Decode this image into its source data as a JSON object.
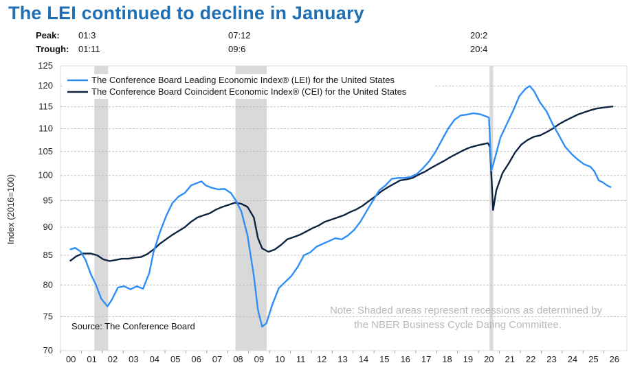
{
  "title": "The LEI continued to decline in January",
  "peak_label": "Peak:",
  "trough_label": "Trough:",
  "peaks": [
    "01:3",
    "07:12",
    "20:2"
  ],
  "troughs": [
    "01:11",
    "09:6",
    "20:4"
  ],
  "chart_data": {
    "type": "line",
    "ylabel": "Index (2016=100)",
    "xlabel": "",
    "ylim": [
      70,
      125
    ],
    "yticks": [
      70,
      75,
      80,
      85,
      90,
      95,
      100,
      105,
      110,
      115,
      120,
      125
    ],
    "x_tick_labels": [
      "00",
      "01",
      "02",
      "03",
      "04",
      "05",
      "06",
      "07",
      "08",
      "09",
      "10",
      "11",
      "12",
      "13",
      "14",
      "15",
      "16",
      "17",
      "18",
      "19",
      "20",
      "21",
      "22",
      "23",
      "24",
      "25",
      "26"
    ],
    "recessions": [
      {
        "start": 2001.17,
        "end": 2001.83
      },
      {
        "start": 2007.92,
        "end": 2009.42
      },
      {
        "start": 2020.08,
        "end": 2020.25
      }
    ],
    "series": [
      {
        "name": "The Conference Board Leading Economic Index® (LEI) for the United States",
        "color": "#2f8ef5",
        "points": [
          [
            2000.0,
            86.0
          ],
          [
            2000.25,
            86.3
          ],
          [
            2000.5,
            85.7
          ],
          [
            2000.75,
            84.2
          ],
          [
            2001.0,
            81.8
          ],
          [
            2001.25,
            80.0
          ],
          [
            2001.5,
            77.8
          ],
          [
            2001.8,
            76.6
          ],
          [
            2002.0,
            77.6
          ],
          [
            2002.3,
            79.6
          ],
          [
            2002.6,
            79.8
          ],
          [
            2002.9,
            79.3
          ],
          [
            2003.2,
            79.8
          ],
          [
            2003.5,
            79.4
          ],
          [
            2003.8,
            82.0
          ],
          [
            2004.0,
            85.5
          ],
          [
            2004.3,
            89.0
          ],
          [
            2004.6,
            92.0
          ],
          [
            2004.9,
            94.5
          ],
          [
            2005.2,
            95.8
          ],
          [
            2005.5,
            96.5
          ],
          [
            2005.8,
            98.0
          ],
          [
            2006.1,
            98.5
          ],
          [
            2006.3,
            98.8
          ],
          [
            2006.5,
            98.0
          ],
          [
            2006.8,
            97.5
          ],
          [
            2007.1,
            97.2
          ],
          [
            2007.4,
            97.3
          ],
          [
            2007.7,
            96.5
          ],
          [
            2007.9,
            95.3
          ],
          [
            2008.2,
            93.0
          ],
          [
            2008.5,
            88.5
          ],
          [
            2008.8,
            81.5
          ],
          [
            2009.0,
            76.0
          ],
          [
            2009.2,
            73.5
          ],
          [
            2009.4,
            74.0
          ],
          [
            2009.7,
            77.0
          ],
          [
            2010.0,
            79.5
          ],
          [
            2010.3,
            80.5
          ],
          [
            2010.6,
            81.5
          ],
          [
            2010.9,
            83.0
          ],
          [
            2011.2,
            85.0
          ],
          [
            2011.5,
            85.5
          ],
          [
            2011.8,
            86.5
          ],
          [
            2012.1,
            87.0
          ],
          [
            2012.4,
            87.5
          ],
          [
            2012.7,
            88.0
          ],
          [
            2013.0,
            87.8
          ],
          [
            2013.3,
            88.5
          ],
          [
            2013.6,
            89.5
          ],
          [
            2013.9,
            91.0
          ],
          [
            2014.2,
            93.0
          ],
          [
            2014.5,
            95.0
          ],
          [
            2014.8,
            97.0
          ],
          [
            2015.1,
            98.0
          ],
          [
            2015.4,
            99.3
          ],
          [
            2015.7,
            99.5
          ],
          [
            2016.0,
            99.5
          ],
          [
            2016.3,
            99.7
          ],
          [
            2016.6,
            100.3
          ],
          [
            2016.9,
            101.5
          ],
          [
            2017.2,
            103.0
          ],
          [
            2017.5,
            105.0
          ],
          [
            2017.8,
            107.5
          ],
          [
            2018.1,
            110.0
          ],
          [
            2018.4,
            112.0
          ],
          [
            2018.7,
            113.0
          ],
          [
            2019.0,
            113.2
          ],
          [
            2019.3,
            113.5
          ],
          [
            2019.6,
            113.3
          ],
          [
            2019.9,
            112.8
          ],
          [
            2020.05,
            112.5
          ],
          [
            2020.17,
            101.0
          ],
          [
            2020.3,
            103.0
          ],
          [
            2020.6,
            108.0
          ],
          [
            2020.9,
            111.0
          ],
          [
            2021.2,
            114.0
          ],
          [
            2021.5,
            117.5
          ],
          [
            2021.8,
            119.3
          ],
          [
            2022.0,
            120.0
          ],
          [
            2022.2,
            118.8
          ],
          [
            2022.5,
            116.0
          ],
          [
            2022.8,
            114.0
          ],
          [
            2023.1,
            111.0
          ],
          [
            2023.4,
            108.5
          ],
          [
            2023.7,
            106.0
          ],
          [
            2024.0,
            104.5
          ],
          [
            2024.3,
            103.3
          ],
          [
            2024.6,
            102.3
          ],
          [
            2024.9,
            101.8
          ],
          [
            2025.1,
            100.8
          ],
          [
            2025.3,
            99.0
          ],
          [
            2025.5,
            98.6
          ],
          [
            2025.7,
            98.0
          ],
          [
            2025.9,
            97.6
          ]
        ]
      },
      {
        "name": "The Conference Board Coincident Economic Index® (CEI) for the United States",
        "color": "#0e2340",
        "points": [
          [
            2000.0,
            84.0
          ],
          [
            2000.3,
            84.8
          ],
          [
            2000.6,
            85.3
          ],
          [
            2001.0,
            85.3
          ],
          [
            2001.3,
            85.0
          ],
          [
            2001.6,
            84.3
          ],
          [
            2001.9,
            84.0
          ],
          [
            2002.2,
            84.2
          ],
          [
            2002.5,
            84.4
          ],
          [
            2002.8,
            84.4
          ],
          [
            2003.1,
            84.6
          ],
          [
            2003.4,
            84.7
          ],
          [
            2003.7,
            85.2
          ],
          [
            2004.0,
            86.0
          ],
          [
            2004.3,
            87.0
          ],
          [
            2004.6,
            87.8
          ],
          [
            2004.9,
            88.6
          ],
          [
            2005.2,
            89.3
          ],
          [
            2005.5,
            90.0
          ],
          [
            2005.8,
            91.0
          ],
          [
            2006.1,
            91.8
          ],
          [
            2006.4,
            92.2
          ],
          [
            2006.7,
            92.6
          ],
          [
            2007.0,
            93.3
          ],
          [
            2007.3,
            93.8
          ],
          [
            2007.6,
            94.2
          ],
          [
            2007.9,
            94.6
          ],
          [
            2008.2,
            94.4
          ],
          [
            2008.5,
            93.8
          ],
          [
            2008.8,
            91.8
          ],
          [
            2009.0,
            88.0
          ],
          [
            2009.2,
            86.2
          ],
          [
            2009.5,
            85.6
          ],
          [
            2009.8,
            86.0
          ],
          [
            2010.1,
            86.8
          ],
          [
            2010.4,
            87.8
          ],
          [
            2010.7,
            88.2
          ],
          [
            2011.0,
            88.6
          ],
          [
            2011.3,
            89.2
          ],
          [
            2011.6,
            89.8
          ],
          [
            2011.9,
            90.3
          ],
          [
            2012.2,
            91.0
          ],
          [
            2012.5,
            91.4
          ],
          [
            2012.8,
            91.8
          ],
          [
            2013.1,
            92.2
          ],
          [
            2013.4,
            92.8
          ],
          [
            2013.7,
            93.3
          ],
          [
            2014.0,
            94.0
          ],
          [
            2014.3,
            94.9
          ],
          [
            2014.6,
            95.8
          ],
          [
            2014.9,
            96.8
          ],
          [
            2015.2,
            97.6
          ],
          [
            2015.5,
            98.3
          ],
          [
            2015.8,
            99.0
          ],
          [
            2016.1,
            99.2
          ],
          [
            2016.4,
            99.5
          ],
          [
            2016.7,
            100.2
          ],
          [
            2017.0,
            100.8
          ],
          [
            2017.3,
            101.6
          ],
          [
            2017.6,
            102.3
          ],
          [
            2017.9,
            103.0
          ],
          [
            2018.2,
            103.8
          ],
          [
            2018.5,
            104.5
          ],
          [
            2018.8,
            105.2
          ],
          [
            2019.1,
            105.8
          ],
          [
            2019.4,
            106.2
          ],
          [
            2019.7,
            106.5
          ],
          [
            2020.0,
            106.8
          ],
          [
            2020.1,
            106.0
          ],
          [
            2020.25,
            93.2
          ],
          [
            2020.4,
            97.0
          ],
          [
            2020.7,
            100.5
          ],
          [
            2021.0,
            102.5
          ],
          [
            2021.3,
            104.8
          ],
          [
            2021.6,
            106.5
          ],
          [
            2021.9,
            107.5
          ],
          [
            2022.2,
            108.2
          ],
          [
            2022.5,
            108.5
          ],
          [
            2022.8,
            109.2
          ],
          [
            2023.1,
            110.0
          ],
          [
            2023.4,
            111.0
          ],
          [
            2023.7,
            111.8
          ],
          [
            2024.0,
            112.5
          ],
          [
            2024.3,
            113.2
          ],
          [
            2024.6,
            113.7
          ],
          [
            2024.9,
            114.2
          ],
          [
            2025.2,
            114.6
          ],
          [
            2025.5,
            114.8
          ],
          [
            2025.8,
            115.0
          ],
          [
            2026.0,
            115.1
          ]
        ]
      }
    ],
    "source": "Source: The Conference Board",
    "note_line1": "Note: Shaded areas represent recessions as determined by",
    "note_line2": "the NBER Business Cycle Dating Committee."
  }
}
